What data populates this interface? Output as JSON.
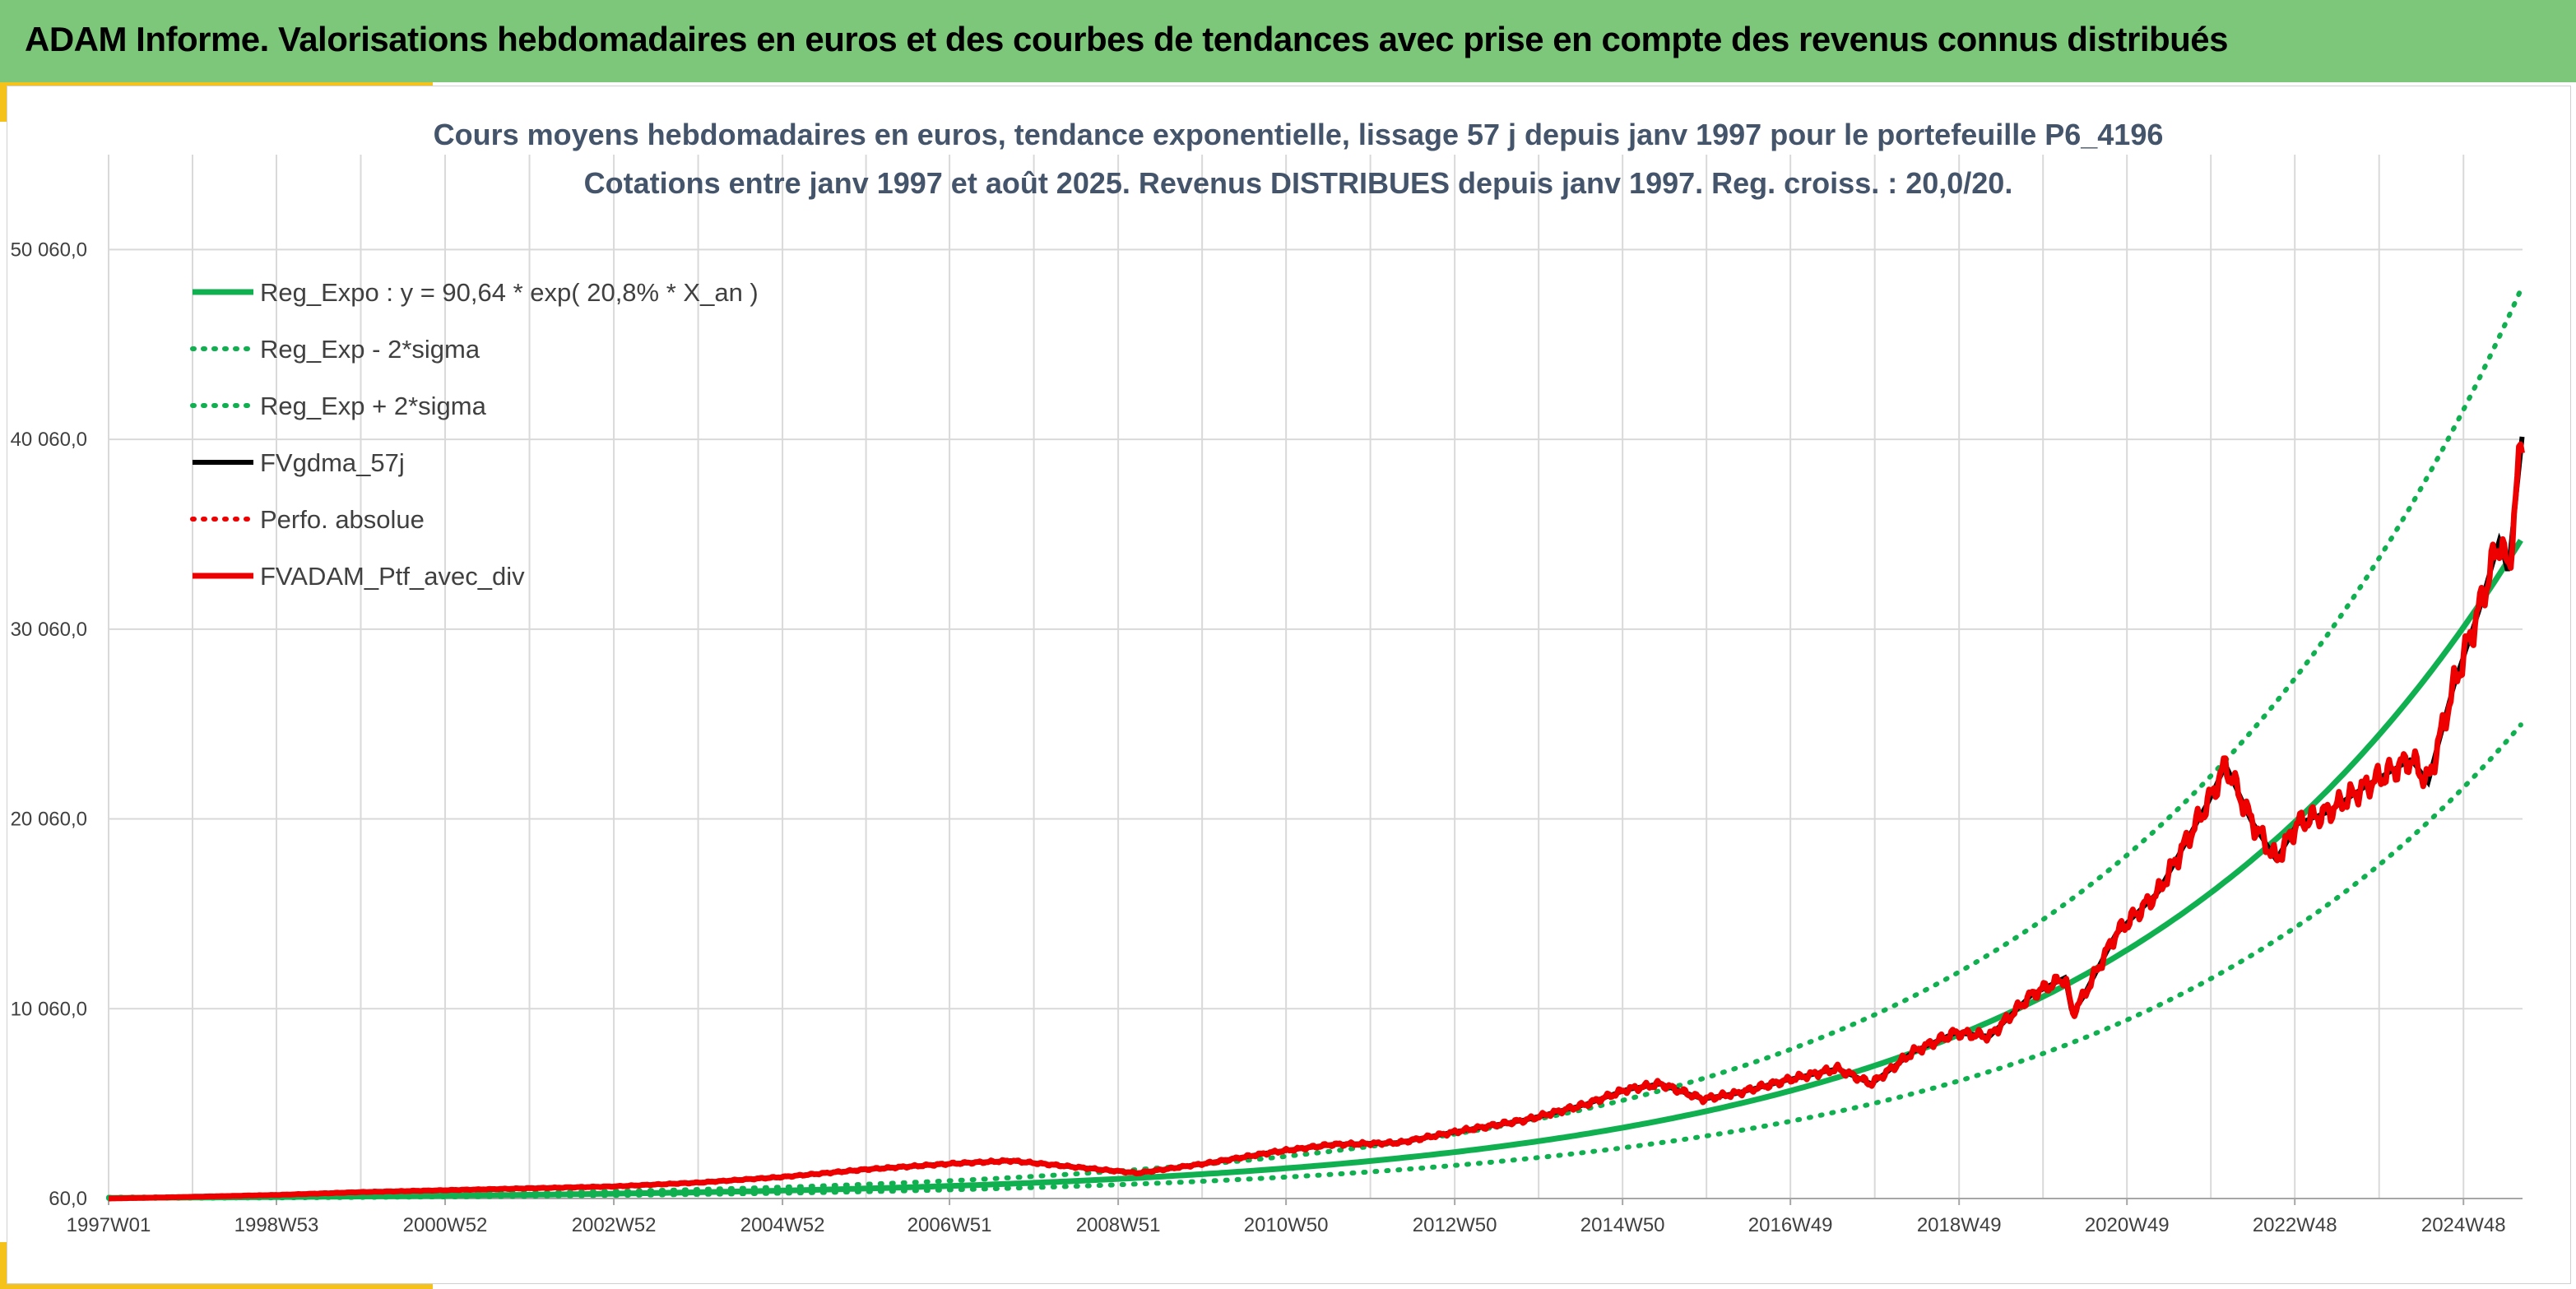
{
  "banner": {
    "title": "ADAM Informe. Valorisations hebdomadaires en euros et des courbes de tendances avec prise en compte des revenus connus distribués"
  },
  "colors": {
    "banner": "#7dc77a",
    "frame_accent": "#f4c21b",
    "title_text": "#44546a",
    "regression": "#10b050",
    "fv_smoothed": "#000000",
    "portfolio": "#ee0000",
    "grid": "#d9d9d9"
  },
  "chart_data": {
    "type": "line",
    "title_line1": "Cours moyens hebdomadaires en euros, tendance exponentielle, lissage 57 j depuis janv 1997 pour le portefeuille P6_4196",
    "title_line2": "Cotations entre janv 1997 et août 2025. Revenus DISTRIBUES depuis janv 1997. Reg. croiss. : 20,0/20.",
    "xlabel": "",
    "ylabel": "",
    "x_range": [
      1997.0,
      2025.62
    ],
    "x_ticks": [
      {
        "label": "1997W01",
        "x": 1997.0
      },
      {
        "label": "1998W53",
        "x": 1998.99
      },
      {
        "label": "2000W52",
        "x": 2000.99
      },
      {
        "label": "2002W52",
        "x": 2002.99
      },
      {
        "label": "2004W52",
        "x": 2004.99
      },
      {
        "label": "2006W51",
        "x": 2006.97
      },
      {
        "label": "2008W51",
        "x": 2008.97
      },
      {
        "label": "2010W50",
        "x": 2010.96
      },
      {
        "label": "2012W50",
        "x": 2012.96
      },
      {
        "label": "2014W50",
        "x": 2014.95
      },
      {
        "label": "2016W49",
        "x": 2016.94
      },
      {
        "label": "2018W49",
        "x": 2018.94
      },
      {
        "label": "2020W49",
        "x": 2020.93
      },
      {
        "label": "2022W48",
        "x": 2022.92
      },
      {
        "label": "2024W48",
        "x": 2024.92
      }
    ],
    "x_minor_per_major": 2,
    "ylim": [
      60,
      55060
    ],
    "y_ticks": [
      {
        "label": "60,0",
        "y": 60
      },
      {
        "label": "10 060,0",
        "y": 10060
      },
      {
        "label": "20 060,0",
        "y": 20060
      },
      {
        "label": "30 060,0",
        "y": 30060
      },
      {
        "label": "40 060,0",
        "y": 40060
      },
      {
        "label": "50 060,0",
        "y": 50060
      }
    ],
    "grid": true,
    "legend_position": "top-left",
    "regression": {
      "a": 90.64,
      "rate": 0.208,
      "sigma_factor_low": 0.72,
      "sigma_factor_high": 1.38
    },
    "series": [
      {
        "name": "Reg_Expo : y = 90,64 * exp( 20,8% *  X_an )",
        "style": "solid-thick",
        "color": "#10b050",
        "kind": "reg"
      },
      {
        "name": "Reg_Exp - 2*sigma",
        "style": "dotted",
        "color": "#10b050",
        "kind": "reg_low"
      },
      {
        "name": "Reg_Exp + 2*sigma",
        "style": "dotted",
        "color": "#10b050",
        "kind": "reg_high"
      },
      {
        "name": "FVgdma_57j",
        "style": "solid",
        "color": "#000000",
        "kind": "smoothed"
      },
      {
        "name": "Perfo. absolue",
        "style": "dotted",
        "color": "#ee0000",
        "kind": "none"
      },
      {
        "name": "FVADAM_Ptf_avec_div",
        "style": "solid-thick",
        "color": "#ee0000",
        "kind": "portfolio"
      }
    ],
    "portfolio_points": [
      [
        1997.0,
        60
      ],
      [
        1998.0,
        150
      ],
      [
        1999.0,
        250
      ],
      [
        2000.0,
        400
      ],
      [
        2001.0,
        500
      ],
      [
        2002.0,
        600
      ],
      [
        2003.0,
        700
      ],
      [
        2004.0,
        900
      ],
      [
        2005.0,
        1200
      ],
      [
        2006.0,
        1600
      ],
      [
        2007.0,
        1900
      ],
      [
        2007.7,
        2050
      ],
      [
        2008.5,
        1700
      ],
      [
        2009.2,
        1400
      ],
      [
        2010.0,
        1900
      ],
      [
        2010.8,
        2500
      ],
      [
        2011.5,
        2900
      ],
      [
        2012.3,
        3000
      ],
      [
        2013.0,
        3600
      ],
      [
        2013.8,
        4200
      ],
      [
        2014.5,
        5000
      ],
      [
        2015.0,
        5800
      ],
      [
        2015.4,
        6100
      ],
      [
        2015.9,
        5300
      ],
      [
        2016.3,
        5600
      ],
      [
        2016.9,
        6300
      ],
      [
        2017.5,
        6900
      ],
      [
        2017.9,
        6100
      ],
      [
        2018.4,
        7800
      ],
      [
        2018.9,
        8800
      ],
      [
        2019.3,
        8600
      ],
      [
        2019.8,
        10800
      ],
      [
        2020.2,
        11700
      ],
      [
        2020.28,
        9800
      ],
      [
        2020.4,
        10600
      ],
      [
        2020.8,
        14000
      ],
      [
        2021.3,
        16200
      ],
      [
        2021.9,
        21000
      ],
      [
        2022.1,
        22900
      ],
      [
        2022.4,
        20000
      ],
      [
        2022.7,
        17900
      ],
      [
        2022.95,
        19800
      ],
      [
        2023.3,
        20400
      ],
      [
        2023.8,
        21900
      ],
      [
        2024.3,
        23200
      ],
      [
        2024.5,
        22000
      ],
      [
        2024.8,
        27000
      ],
      [
        2025.1,
        31000
      ],
      [
        2025.35,
        34800
      ],
      [
        2025.45,
        33000
      ],
      [
        2025.62,
        40400
      ]
    ]
  }
}
